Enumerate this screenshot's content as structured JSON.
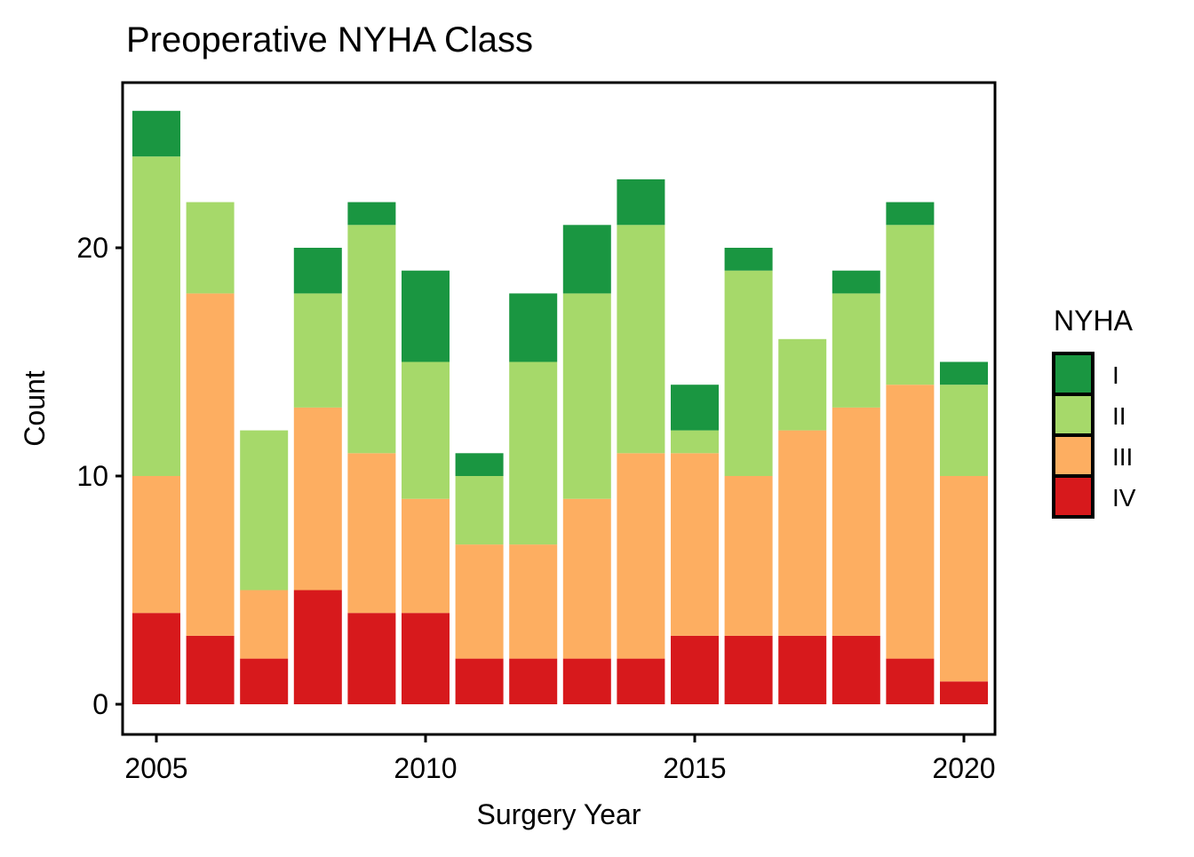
{
  "chart_data": {
    "type": "bar",
    "stacked": true,
    "title": "Preoperative NYHA Class",
    "xlabel": "Surgery Year",
    "ylabel": "Count",
    "categories": [
      2005,
      2006,
      2007,
      2008,
      2009,
      2010,
      2011,
      2012,
      2013,
      2014,
      2015,
      2016,
      2017,
      2018,
      2019,
      2020
    ],
    "xticks": [
      "2005",
      "2010",
      "2015",
      "2020"
    ],
    "xtick_values": [
      2005,
      2010,
      2015,
      2020
    ],
    "yticks": [
      "0",
      "10",
      "20"
    ],
    "ytick_values": [
      0,
      10,
      20
    ],
    "ylim": [
      -1.3,
      27.3
    ],
    "xlim": [
      2004.45,
      2020.55
    ],
    "grid": false,
    "legend": {
      "title": "NYHA",
      "placement": "right",
      "entries": [
        "I",
        "II",
        "III",
        "IV"
      ]
    },
    "series": [
      {
        "name": "IV",
        "color": "#d7191c",
        "values": [
          4,
          3,
          2,
          5,
          4,
          4,
          2,
          2,
          2,
          2,
          3,
          3,
          3,
          3,
          2,
          1
        ]
      },
      {
        "name": "III",
        "color": "#fdae61",
        "values": [
          6,
          15,
          3,
          8,
          7,
          5,
          5,
          5,
          7,
          9,
          8,
          7,
          9,
          10,
          12,
          9
        ]
      },
      {
        "name": "II",
        "color": "#a6d96a",
        "values": [
          14,
          4,
          7,
          5,
          10,
          6,
          3,
          8,
          9,
          10,
          1,
          9,
          4,
          5,
          7,
          4
        ]
      },
      {
        "name": "I",
        "color": "#1a9641",
        "values": [
          2,
          0,
          0,
          2,
          1,
          4,
          1,
          3,
          3,
          2,
          2,
          1,
          0,
          1,
          1,
          1
        ]
      }
    ]
  }
}
